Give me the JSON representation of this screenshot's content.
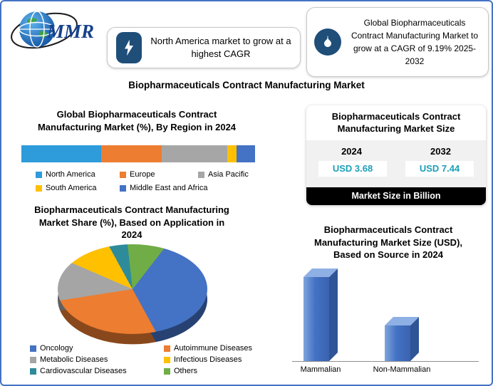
{
  "logo": {
    "brand": "MMR"
  },
  "callouts": {
    "left": {
      "icon": "lightning-icon",
      "text": "North America market to grow at a highest CAGR"
    },
    "right": {
      "icon": "flame-icon",
      "text": "Global Biopharmaceuticals Contract Manufacturing Market to grow at a CAGR of 9.19% 2025-2032"
    }
  },
  "main_title": "Biopharmaceuticals Contract Manufacturing Market",
  "market_size_panel": {
    "title": "Biopharmaceuticals Contract Manufacturing Market Size",
    "columns": [
      {
        "year": "2024",
        "value": "USD 3.68"
      },
      {
        "year": "2032",
        "value": "USD 7.44"
      }
    ],
    "footer": "Market Size in Billion",
    "value_color": "#1B9FB8"
  },
  "colors": {
    "frame_border": "#4472C4",
    "icon_badge_bg": "#1F4E79",
    "footer_bg": "#000000"
  },
  "chart_data": [
    {
      "id": "region_share",
      "type": "bar",
      "subtype": "stacked_horizontal",
      "title": "Global Biopharmaceuticals Contract Manufacturing Market (%), By Region in 2024",
      "categories": [
        "North America",
        "Europe",
        "Asia Pacific",
        "South America",
        "Middle East and Africa"
      ],
      "values": [
        34,
        26,
        28,
        4,
        8
      ],
      "unit": "%",
      "colors": [
        "#2E9BDA",
        "#ED7D31",
        "#A6A6A6",
        "#FFC000",
        "#4472C4"
      ],
      "legend_position": "bottom"
    },
    {
      "id": "application_share",
      "type": "pie",
      "style": "pie3d",
      "title": "Biopharmaceuticals Contract Manufacturing Market Share (%), Based on Application in 2024",
      "categories": [
        "Oncology",
        "Autoimmune Diseases",
        "Metabolic Diseases",
        "Infectious Diseases",
        "Cardiovascular Diseases",
        "Others"
      ],
      "values": [
        38,
        26,
        14,
        10,
        4,
        8
      ],
      "unit": "%",
      "colors": [
        "#4472C4",
        "#ED7D31",
        "#A5A5A5",
        "#FFC000",
        "#2E8B9A",
        "#70AD47"
      ],
      "start_angle_deg": 25,
      "legend_position": "bottom"
    },
    {
      "id": "source_size",
      "type": "bar",
      "subtype": "column_3d",
      "title": "Biopharmaceuticals Contract Manufacturing Market Size (USD), Based on Source in 2024",
      "categories": [
        "Mammalian",
        "Non-Mammalian"
      ],
      "values": [
        100,
        42
      ],
      "value_scale": "relative",
      "colors": [
        "#4472C4",
        "#4472C4"
      ]
    }
  ]
}
